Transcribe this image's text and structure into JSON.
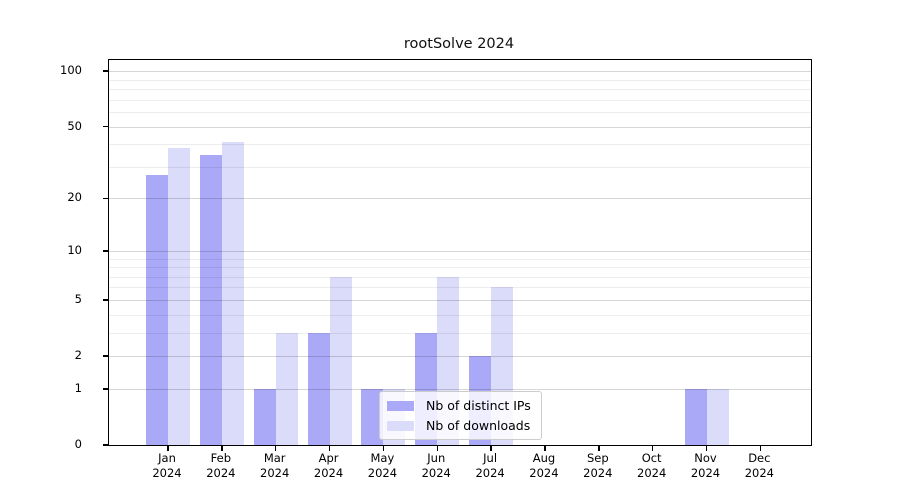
{
  "chart_data": {
    "type": "bar",
    "title": "rootSolve 2024",
    "categories": [
      {
        "month": "Jan",
        "year": "2024"
      },
      {
        "month": "Feb",
        "year": "2024"
      },
      {
        "month": "Mar",
        "year": "2024"
      },
      {
        "month": "Apr",
        "year": "2024"
      },
      {
        "month": "May",
        "year": "2024"
      },
      {
        "month": "Jun",
        "year": "2024"
      },
      {
        "month": "Jul",
        "year": "2024"
      },
      {
        "month": "Aug",
        "year": "2024"
      },
      {
        "month": "Sep",
        "year": "2024"
      },
      {
        "month": "Oct",
        "year": "2024"
      },
      {
        "month": "Nov",
        "year": "2024"
      },
      {
        "month": "Dec",
        "year": "2024"
      }
    ],
    "series": [
      {
        "name": "Nb of distinct IPs",
        "color": "#a9a9f8",
        "values": [
          27,
          35,
          1,
          3,
          1,
          3,
          2,
          0,
          0,
          0,
          1,
          0
        ]
      },
      {
        "name": "Nb of downloads",
        "color": "#dbdbfa",
        "values": [
          38,
          41,
          3,
          7,
          1,
          7,
          6,
          0,
          0,
          0,
          1,
          0
        ]
      }
    ],
    "y_axis": {
      "scale": "log1p",
      "top_value": 115,
      "major_ticks": [
        100,
        50,
        20,
        10,
        5,
        2,
        1,
        0
      ],
      "minor_ticks": [
        90,
        80,
        70,
        60,
        40,
        30,
        9,
        8,
        7,
        6,
        4,
        3
      ]
    },
    "legend": {
      "position": "lower-center",
      "background_opacity": 0.8
    }
  }
}
